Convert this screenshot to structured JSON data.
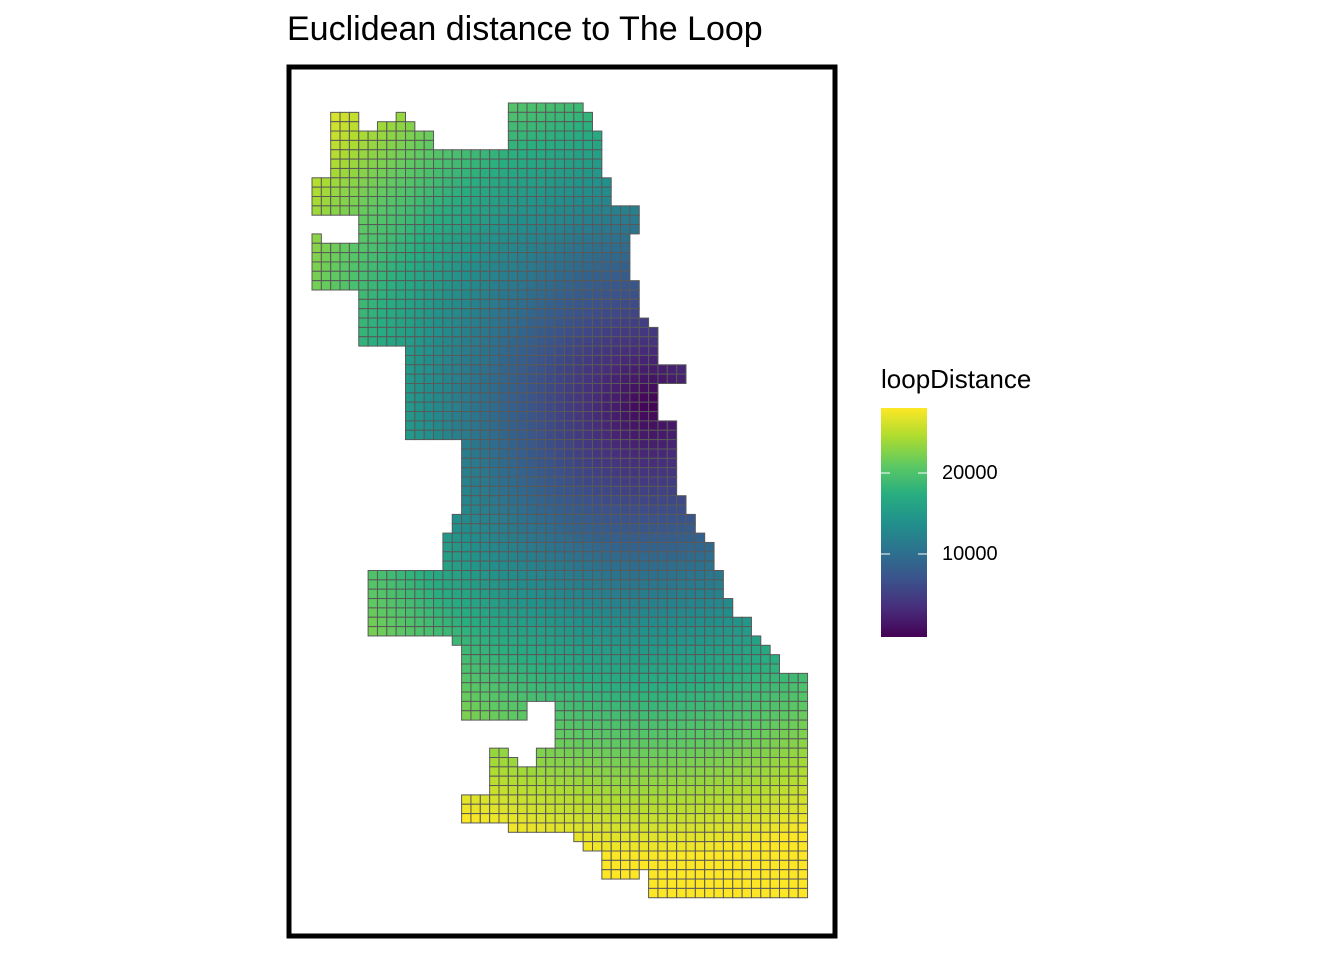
{
  "title": "Euclidean distance to The Loop",
  "legend": {
    "title": "loopDistance",
    "ticks": [
      {
        "value": 20000,
        "label": "20000"
      },
      {
        "value": 10000,
        "label": "10000"
      }
    ],
    "range": [
      500,
      28600
    ],
    "palette": "viridis"
  },
  "map": {
    "type": "choropleth-fishnet",
    "variable": "loopDistance",
    "cell_outline_color": "#595959",
    "frame_color": "#000000",
    "loop_location_value": 500
  }
}
